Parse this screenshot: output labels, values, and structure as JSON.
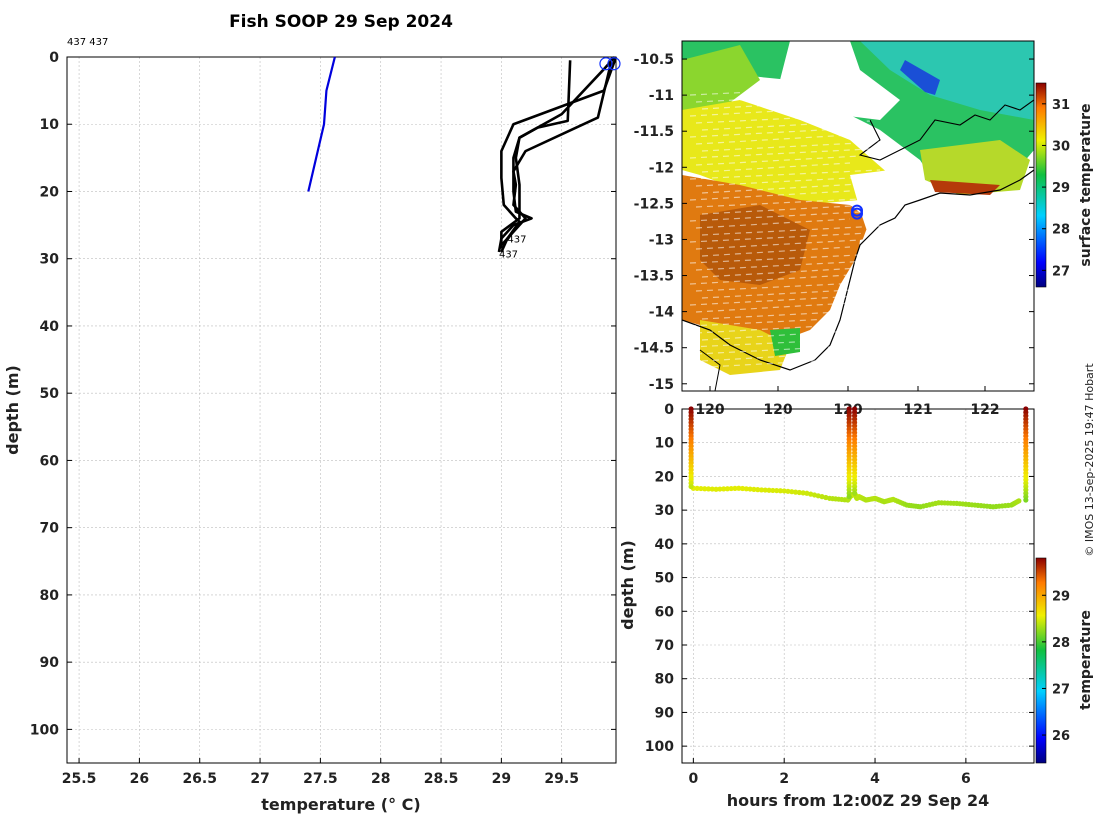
{
  "header": {
    "title": "Fish SOOP 29 Sep 2024",
    "profile_ids": "437 437",
    "credit": "© IMOS 13-Sep-2025 19:47 Hobart"
  },
  "chart_data": [
    {
      "type": "line",
      "name": "temperature-profile",
      "xlabel": "temperature (° C)",
      "ylabel": "depth (m)",
      "xlim": [
        25.4,
        29.95
      ],
      "ylim": [
        0,
        105
      ],
      "y_reversed": true,
      "xticks": [
        "25.5",
        "26",
        "26.5",
        "27",
        "27.5",
        "28",
        "28.5",
        "29",
        "29.5"
      ],
      "xtick_values": [
        25.5,
        26,
        26.5,
        27,
        27.5,
        28,
        28.5,
        29,
        29.5
      ],
      "yticks": [
        "0",
        "10",
        "20",
        "30",
        "40",
        "50",
        "60",
        "70",
        "80",
        "90",
        "100"
      ],
      "ytick_values": [
        0,
        10,
        20,
        30,
        40,
        50,
        60,
        70,
        80,
        90,
        100
      ],
      "series": [
        {
          "name": "reference",
          "color": "#0000dd",
          "x": [
            27.62,
            27.55,
            27.53,
            27.4
          ],
          "y": [
            0,
            5,
            10,
            20
          ]
        },
        {
          "name": "cast-1",
          "color": "#000000",
          "x": [
            29.57,
            29.56,
            29.55,
            29.3,
            29.15,
            29.1,
            29.1,
            29.12,
            29.25,
            29.1,
            29.0,
            28.98
          ],
          "y": [
            0.5,
            5,
            9.5,
            10.5,
            12,
            15,
            20,
            23,
            24,
            25,
            27,
            29
          ]
        },
        {
          "name": "cast-2",
          "color": "#000000",
          "x": [
            29.95,
            29.85,
            29.1,
            29.0,
            29.0,
            29.02,
            29.12,
            29.15,
            29.05,
            29.0
          ],
          "y": [
            0,
            5,
            10,
            14,
            18,
            22,
            24,
            24.5,
            27,
            29
          ]
        },
        {
          "name": "cast-3",
          "color": "#000000",
          "x": [
            29.92,
            29.88,
            29.8,
            29.2,
            29.1,
            29.12,
            29.1,
            29.2,
            29.05,
            29.0
          ],
          "y": [
            0,
            3,
            9,
            14,
            17,
            19,
            22,
            24,
            27,
            28
          ]
        },
        {
          "name": "cast-4",
          "color": "#000000",
          "x": [
            29.94,
            29.84,
            29.5,
            29.15,
            29.12,
            29.15,
            29.15,
            29.0,
            29.0
          ],
          "y": [
            0,
            2,
            8.5,
            12,
            15,
            19,
            24,
            26,
            28.5
          ]
        }
      ],
      "surface_marker": {
        "x": 29.9,
        "y": 1
      },
      "annotations": [
        {
          "text": "437",
          "x": 29.05,
          "y": 27
        },
        {
          "text": "437",
          "x": 28.98,
          "y": 29.2
        }
      ]
    },
    {
      "type": "heatmap",
      "name": "surface-temperature-map",
      "xticks": [
        "120",
        "120",
        "120",
        "121",
        "122"
      ],
      "yticks": [
        "-10.5",
        "-11",
        "-11.5",
        "-12",
        "-12.5",
        "-13",
        "-13.5",
        "-14",
        "-14.5",
        "-15"
      ],
      "ytick_values": [
        -10.5,
        -11,
        -11.5,
        -12,
        -12.5,
        -13,
        -13.5,
        -14,
        -14.5,
        -15
      ],
      "ylim": [
        -10.25,
        -15.1
      ],
      "colorbar": {
        "label": "surface temperature",
        "ticks": [
          "27",
          "28",
          "29",
          "30",
          "31"
        ],
        "tick_values": [
          27,
          28,
          29,
          30,
          31
        ],
        "range": [
          26.6,
          31.5
        ]
      },
      "vessel_location": {
        "lon": 120.2,
        "lat": -12.6
      }
    },
    {
      "type": "scatter",
      "name": "depth-time-section",
      "xlabel": "hours from 12:00Z 29 Sep 24",
      "ylabel": "depth (m)",
      "xlim": [
        -0.25,
        7.5
      ],
      "ylim": [
        0,
        105
      ],
      "y_reversed": true,
      "xticks": [
        "0",
        "2",
        "4",
        "6"
      ],
      "xtick_values": [
        0,
        2,
        4,
        6
      ],
      "yticks": [
        "0",
        "10",
        "20",
        "30",
        "40",
        "50",
        "60",
        "70",
        "80",
        "90",
        "100"
      ],
      "ytick_values": [
        0,
        10,
        20,
        30,
        40,
        50,
        60,
        70,
        80,
        90,
        100
      ],
      "tow_track": {
        "hours": [
          0,
          0.5,
          1,
          1.5,
          2,
          2.5,
          3,
          3.4,
          3.45,
          3.55,
          3.6,
          3.65,
          3.8,
          4.0,
          4.2,
          4.4,
          4.7,
          5.0,
          5.4,
          5.8,
          6.2,
          6.6,
          7.0,
          7.2
        ],
        "depths": [
          23.5,
          23.8,
          23.5,
          24.0,
          24.3,
          25.0,
          26.5,
          27.0,
          26.0,
          25.0,
          26.5,
          26.0,
          27.0,
          26.5,
          27.5,
          26.8,
          28.5,
          29.0,
          27.8,
          28.0,
          28.5,
          29.0,
          28.5,
          27.0
        ]
      },
      "casts": [
        {
          "hour": -0.05,
          "max_depth": 23
        },
        {
          "hour": 3.43,
          "max_depth": 26
        },
        {
          "hour": 3.55,
          "max_depth": 25
        },
        {
          "hour": 7.32,
          "max_depth": 27
        }
      ],
      "colorbar": {
        "label": "temperature",
        "ticks": [
          "26",
          "27",
          "28",
          "29"
        ],
        "tick_values": [
          26,
          27,
          28,
          29
        ],
        "range": [
          25.4,
          29.8
        ]
      }
    }
  ]
}
